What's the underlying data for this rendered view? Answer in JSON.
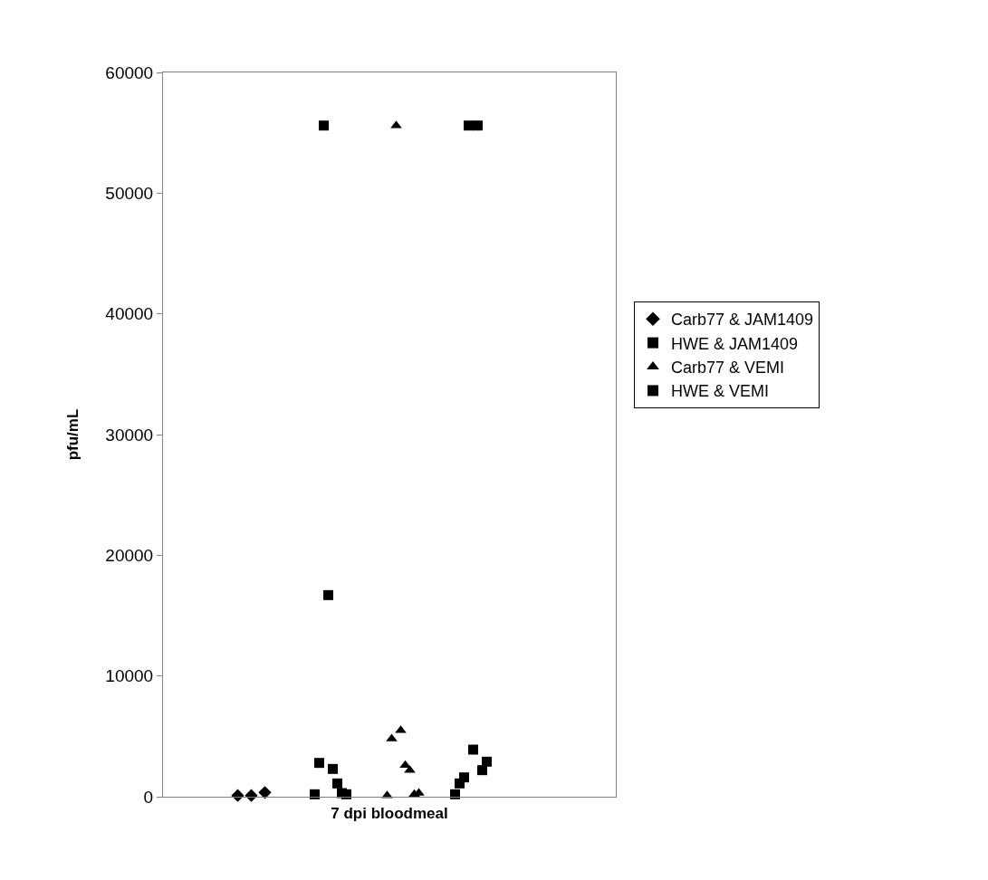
{
  "chart_data": {
    "type": "scatter",
    "xlabel": "7 dpi bloodmeal",
    "ylabel": "pfu/mL",
    "ylim": [
      0,
      60000
    ],
    "yticks": [
      0,
      10000,
      20000,
      30000,
      40000,
      50000,
      60000
    ],
    "tick_labels": "y",
    "legend": "right",
    "categories": [
      null,
      null,
      null,
      null,
      null,
      null,
      null,
      null,
      null,
      null,
      null,
      null,
      null,
      null,
      null,
      null,
      null,
      null,
      null,
      null,
      null,
      null,
      null,
      null,
      null,
      null,
      null,
      null,
      null,
      null,
      null,
      null,
      null,
      null,
      null,
      null,
      null,
      null,
      null,
      null,
      null,
      null,
      null,
      null,
      null,
      null,
      null,
      null,
      null,
      null,
      null,
      null,
      null,
      null,
      null,
      null,
      null,
      null,
      null,
      null,
      null,
      null,
      null,
      null,
      null,
      null,
      null,
      null,
      null,
      null,
      null,
      null,
      null,
      null,
      null,
      null,
      null,
      null,
      null,
      null,
      null,
      null,
      null,
      null,
      null,
      null,
      null,
      null,
      null,
      null,
      null,
      null,
      null,
      null,
      null,
      null,
      null,
      null,
      null,
      null
    ],
    "series": [
      {
        "name": "Carb77 & JAM1409",
        "color": "#000000",
        "marker": "diamond",
        "values": [
          null,
          null,
          null,
          null,
          null,
          null,
          null,
          null,
          null,
          null,
          null,
          null,
          null,
          null,
          null,
          null,
          100,
          null,
          null,
          100,
          null,
          null,
          350,
          null,
          null,
          null,
          null,
          null,
          null,
          null,
          null,
          null,
          null,
          null,
          null,
          null,
          null,
          null,
          null,
          null,
          null,
          null,
          null,
          null,
          null,
          null,
          null,
          null,
          null,
          null,
          null,
          null,
          null,
          null,
          null,
          null,
          null,
          null,
          null,
          null,
          null,
          null,
          null,
          null,
          null,
          null,
          null,
          null,
          null,
          null,
          null,
          null,
          null,
          null,
          null,
          null,
          null,
          null,
          null,
          null,
          null,
          null,
          null,
          null,
          null,
          null,
          null,
          null,
          null,
          null,
          null,
          null,
          null,
          null,
          null,
          null,
          null,
          null,
          null,
          null
        ]
      },
      {
        "name": "HWE & JAM1409",
        "color": "#000000",
        "marker": "square",
        "values": [
          null,
          null,
          null,
          null,
          null,
          null,
          null,
          null,
          null,
          null,
          null,
          null,
          null,
          null,
          null,
          null,
          null,
          null,
          null,
          null,
          null,
          null,
          null,
          null,
          null,
          null,
          null,
          null,
          null,
          null,
          null,
          null,
          null,
          200,
          2800,
          55600,
          16700,
          2300,
          1100,
          300,
          200,
          null,
          null,
          null,
          null,
          null,
          null,
          null,
          null,
          null,
          null,
          null,
          null,
          null,
          null,
          null,
          null,
          null,
          null,
          null,
          null,
          null,
          null,
          null,
          null,
          null,
          null,
          null,
          null,
          null,
          null,
          null,
          null,
          null,
          null,
          null,
          null,
          null,
          null,
          null,
          null,
          null,
          null,
          null,
          null,
          null,
          null,
          null,
          null,
          null,
          null,
          null,
          null,
          null,
          null,
          null,
          null,
          null,
          null,
          null
        ]
      },
      {
        "name": "Carb77 & VEMI",
        "color": "#000000",
        "marker": "triangle",
        "values": [
          null,
          null,
          null,
          null,
          null,
          null,
          null,
          null,
          null,
          null,
          null,
          null,
          null,
          null,
          null,
          null,
          null,
          null,
          null,
          null,
          null,
          null,
          null,
          null,
          null,
          null,
          null,
          null,
          null,
          null,
          null,
          null,
          null,
          null,
          null,
          null,
          null,
          null,
          null,
          null,
          null,
          null,
          null,
          null,
          null,
          null,
          null,
          null,
          null,
          100,
          4800,
          55600,
          5500,
          2600,
          2200,
          200,
          300,
          null,
          null,
          null,
          null,
          null,
          null,
          null,
          null,
          null,
          null,
          null,
          null,
          null,
          null,
          null,
          null,
          null,
          null,
          null,
          null,
          null,
          null,
          null,
          null,
          null,
          null,
          null,
          null,
          null,
          null,
          null,
          null,
          null,
          null,
          null,
          null,
          null,
          null,
          null,
          null,
          null,
          null,
          null
        ]
      },
      {
        "name": "HWE & VEMI",
        "color": "#000000",
        "marker": "square",
        "values": [
          null,
          null,
          null,
          null,
          null,
          null,
          null,
          null,
          null,
          null,
          null,
          null,
          null,
          null,
          null,
          null,
          null,
          null,
          null,
          null,
          null,
          null,
          null,
          null,
          null,
          null,
          null,
          null,
          null,
          null,
          null,
          null,
          null,
          null,
          null,
          null,
          null,
          null,
          null,
          null,
          null,
          null,
          null,
          null,
          null,
          null,
          null,
          null,
          null,
          null,
          null,
          null,
          null,
          null,
          null,
          null,
          null,
          null,
          null,
          null,
          null,
          null,
          null,
          null,
          200,
          1100,
          1600,
          55600,
          3900,
          55600,
          2200,
          2900,
          null,
          null,
          null,
          null,
          null,
          null,
          null,
          null,
          null,
          null,
          null,
          null,
          null,
          null,
          null,
          null,
          null,
          null,
          null,
          null,
          null,
          null,
          null,
          null,
          null,
          null,
          null,
          null
        ]
      }
    ]
  }
}
